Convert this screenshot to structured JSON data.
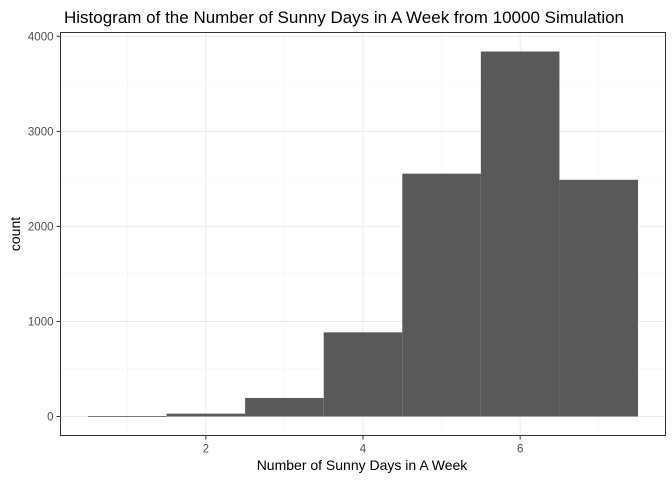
{
  "chart_data": {
    "type": "bar",
    "title": "Histogram of the Number of Sunny Days in A Week from 10000 Simulation",
    "xlabel": "Number of Sunny Days in A Week",
    "ylabel": "count",
    "bins": [
      {
        "center": 1,
        "start": 0.5,
        "end": 1.5,
        "count": 5
      },
      {
        "center": 2,
        "start": 1.5,
        "end": 2.5,
        "count": 30
      },
      {
        "center": 3,
        "start": 2.5,
        "end": 3.5,
        "count": 195
      },
      {
        "center": 4,
        "start": 3.5,
        "end": 4.5,
        "count": 885
      },
      {
        "center": 5,
        "start": 4.5,
        "end": 5.5,
        "count": 2555
      },
      {
        "center": 6,
        "start": 5.5,
        "end": 6.5,
        "count": 3840
      },
      {
        "center": 7,
        "start": 6.5,
        "end": 7.5,
        "count": 2490
      }
    ],
    "xlim": [
      0.15,
      7.85
    ],
    "ylim": [
      -200,
      4040
    ],
    "x_ticks": [
      2,
      4,
      6
    ],
    "y_ticks": [
      0,
      1000,
      2000,
      3000,
      4000
    ],
    "x_tick_labels": [
      "2",
      "4",
      "6"
    ],
    "y_tick_labels": [
      "0",
      "1000",
      "2000",
      "3000",
      "4000"
    ],
    "bar_color": "#595959",
    "grid": true,
    "theme": "bw",
    "legend": "none"
  }
}
